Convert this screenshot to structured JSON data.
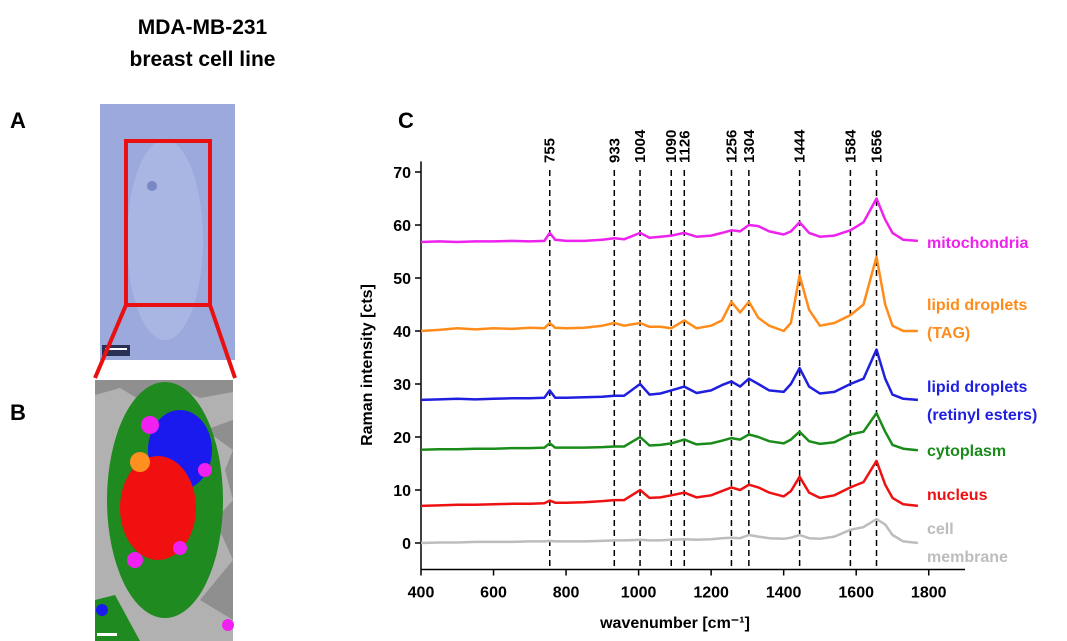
{
  "figure": {
    "title": "MDA-MB-231 breast cell line",
    "panel_labels": [
      "A",
      "B",
      "C"
    ]
  },
  "chart_data": {
    "type": "line",
    "x_label": "wavenumber [cm⁻¹]",
    "y_label": "Raman intensity [cts]",
    "xlim": [
      400,
      1900
    ],
    "ylim": [
      -5,
      72
    ],
    "xticks": [
      400,
      600,
      800,
      1000,
      1200,
      1400,
      1600,
      1800
    ],
    "yticks": [
      0,
      10,
      20,
      30,
      40,
      50,
      60,
      70
    ],
    "peak_lines": [
      755,
      933,
      1004,
      1090,
      1126,
      1256,
      1304,
      1444,
      1584,
      1656
    ],
    "x": [
      400,
      450,
      500,
      550,
      600,
      650,
      700,
      740,
      755,
      770,
      800,
      850,
      900,
      933,
      960,
      1004,
      1030,
      1060,
      1090,
      1126,
      1160,
      1200,
      1230,
      1256,
      1280,
      1304,
      1330,
      1360,
      1400,
      1420,
      1444,
      1470,
      1500,
      1540,
      1584,
      1620,
      1656,
      1680,
      1700,
      1730,
      1770
    ],
    "series": [
      {
        "name": "mitochondria",
        "color": "#ee22ee",
        "values": [
          56.8,
          56.9,
          56.8,
          56.9,
          56.9,
          57,
          56.9,
          57,
          58.5,
          57.2,
          57,
          57,
          57.2,
          57.5,
          57.3,
          58.5,
          57.6,
          57.8,
          58,
          58.5,
          57.8,
          58,
          58.5,
          59,
          58.8,
          60,
          59.8,
          58.8,
          58.2,
          58.8,
          60.5,
          58.5,
          57.8,
          58,
          59,
          60.5,
          65,
          61,
          58.5,
          57.2,
          57
        ]
      },
      {
        "name": "lipid droplets (TAG)",
        "color": "#ff8c1a",
        "values": [
          40,
          40.2,
          40.5,
          40.3,
          40.5,
          40.4,
          40.6,
          40.5,
          41.5,
          40.6,
          40.5,
          40.6,
          41,
          41.5,
          41,
          41.5,
          40.8,
          40.8,
          40.5,
          42,
          40.5,
          41,
          42,
          45.5,
          43.5,
          45.5,
          42.5,
          41,
          40,
          41.5,
          50.5,
          44,
          41,
          41.5,
          43,
          45,
          54,
          45,
          41,
          40,
          40
        ]
      },
      {
        "name": "lipid droplets (retinyl esters)",
        "color": "#1f1fe0",
        "values": [
          27,
          27.1,
          27.2,
          27.1,
          27.2,
          27.3,
          27.3,
          27.4,
          28.8,
          27.4,
          27.4,
          27.5,
          27.6,
          27.8,
          27.8,
          30,
          28,
          28.2,
          28.8,
          29.5,
          28.3,
          28.8,
          29.8,
          30.5,
          29.5,
          31,
          30,
          28.8,
          28.5,
          30,
          33,
          29.5,
          28.2,
          28.5,
          30,
          31,
          36.5,
          31,
          28,
          27.2,
          27
        ]
      },
      {
        "name": "cytoplasm",
        "color": "#1a8c1a",
        "values": [
          17.6,
          17.7,
          17.7,
          17.8,
          17.8,
          17.9,
          17.9,
          18,
          18.8,
          18,
          18,
          18,
          18.1,
          18.2,
          18.2,
          20,
          18.4,
          18.5,
          18.8,
          19.5,
          18.6,
          18.8,
          19.3,
          19.8,
          19.5,
          20.5,
          20,
          19.2,
          18.8,
          19.5,
          21,
          19.2,
          18.7,
          19,
          20.5,
          21,
          24.5,
          21,
          18.5,
          17.8,
          17.5
        ]
      },
      {
        "name": "nucleus",
        "color": "#ee1111",
        "values": [
          7,
          7.1,
          7.2,
          7.2,
          7.3,
          7.4,
          7.4,
          7.5,
          8,
          7.6,
          7.6,
          7.7,
          7.9,
          8.1,
          8.1,
          10,
          8.5,
          8.6,
          9,
          9.5,
          8.6,
          9,
          9.8,
          10.5,
          10,
          11,
          10.5,
          9.5,
          8.8,
          9.8,
          12.5,
          9.5,
          8.5,
          9,
          10.5,
          11.5,
          15.5,
          11,
          8.5,
          7.3,
          7
        ]
      },
      {
        "name": "cell membrane",
        "color": "#bdbdbd",
        "values": [
          0,
          0.1,
          0.1,
          0.2,
          0.2,
          0.2,
          0.3,
          0.3,
          0.4,
          0.3,
          0.3,
          0.3,
          0.4,
          0.5,
          0.5,
          0.6,
          0.5,
          0.5,
          0.6,
          0.7,
          0.6,
          0.7,
          0.9,
          1,
          0.9,
          1.5,
          1.2,
          0.9,
          0.8,
          1,
          1.5,
          0.9,
          0.8,
          1.2,
          2.5,
          3,
          4.5,
          3.5,
          1.5,
          0.3,
          0
        ]
      }
    ]
  }
}
